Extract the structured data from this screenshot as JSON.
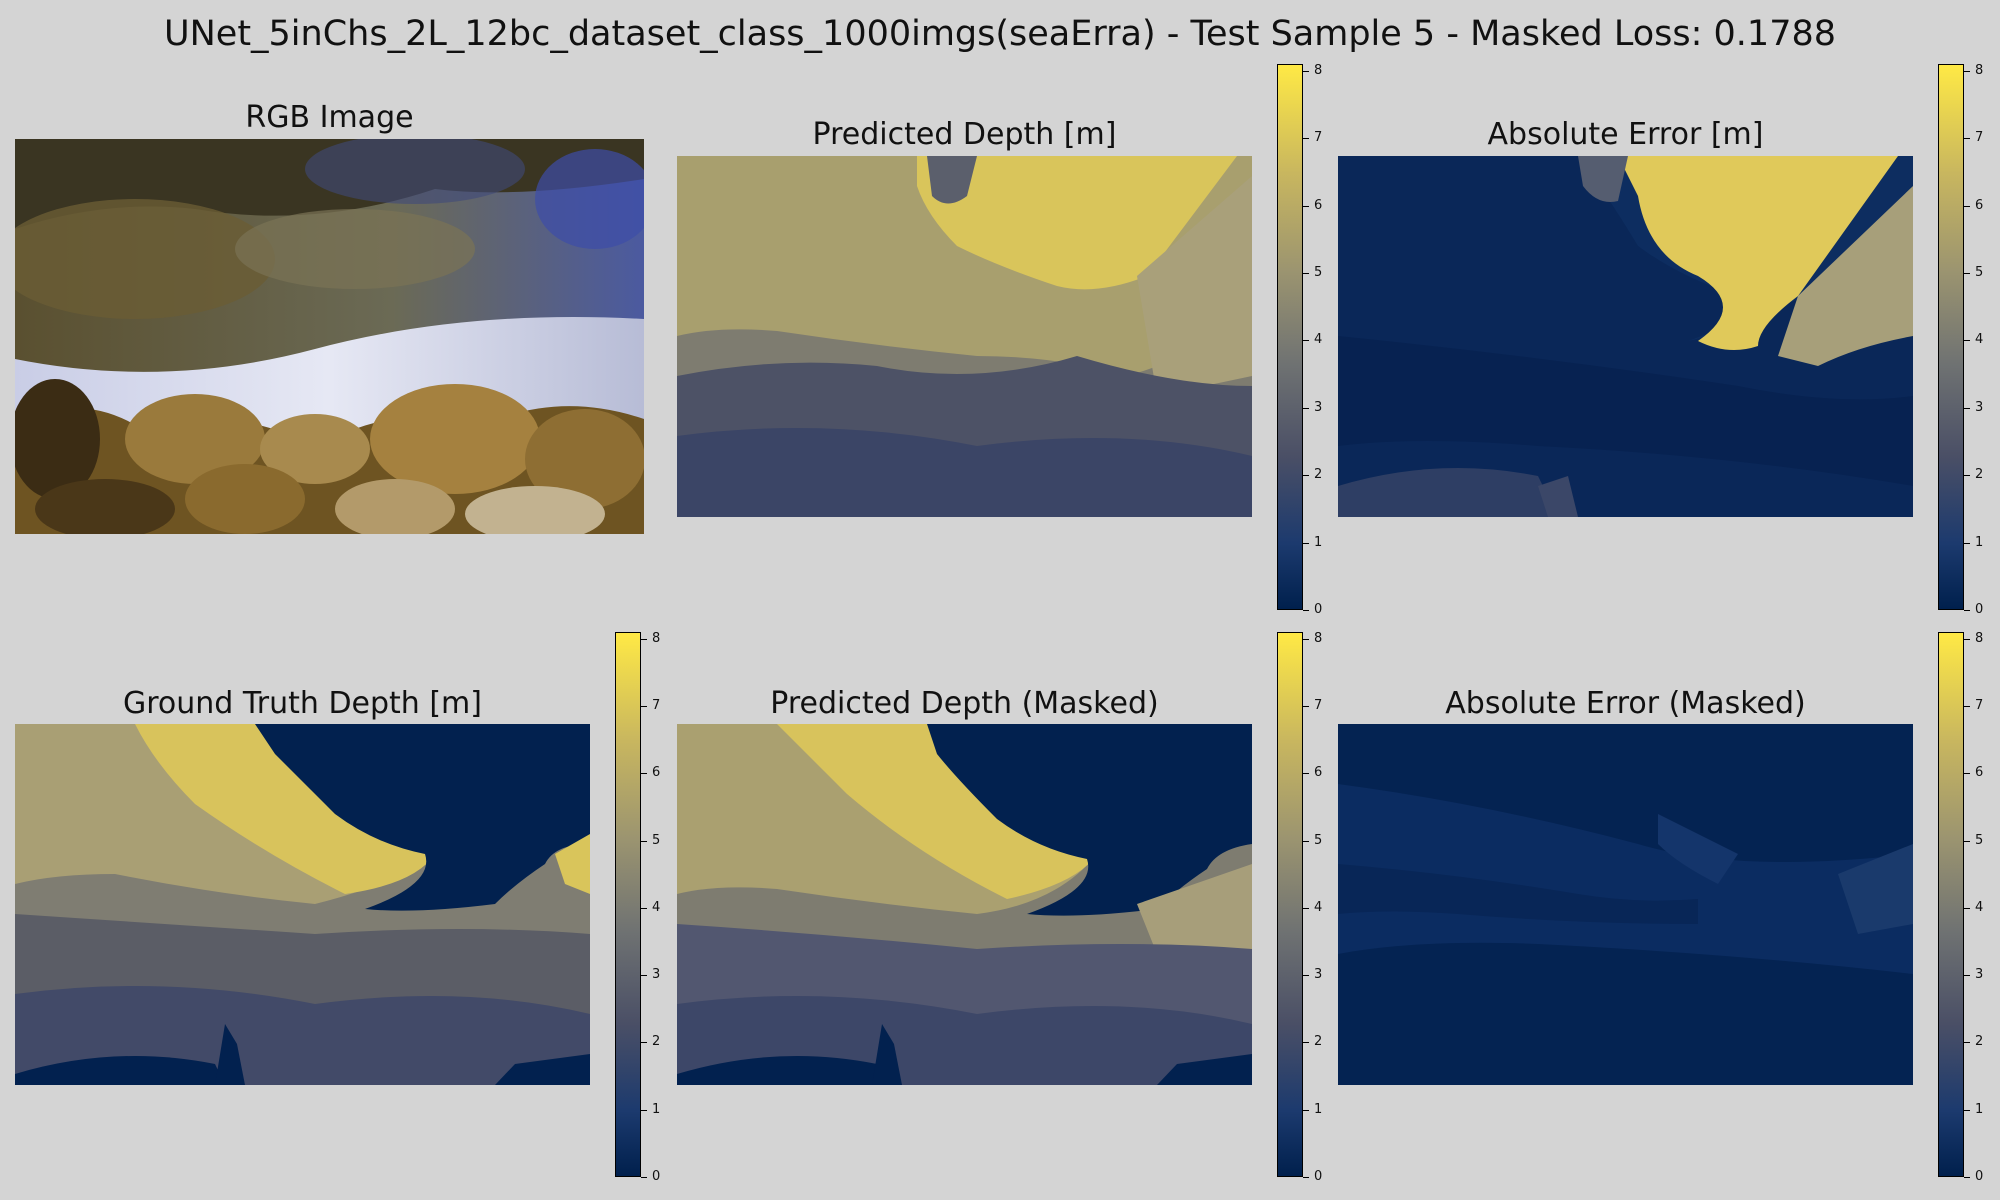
{
  "figure": {
    "title": "UNet_5inChs_2L_12bc_dataset_class_1000imgs(seaErra) - Test Sample 5 - Masked Loss: 0.1788"
  },
  "panels": {
    "rgb": {
      "title": "RGB Image"
    },
    "pred": {
      "title": "Predicted Depth [m]"
    },
    "err": {
      "title": "Absolute Error [m]"
    },
    "gt": {
      "title": "Ground Truth Depth [m]"
    },
    "pred_masked": {
      "title": "Predicted Depth (Masked)"
    },
    "err_masked": {
      "title": "Absolute Error (Masked)"
    }
  },
  "colorbar": {
    "colormap": "cividis",
    "ticks": [
      "0",
      "1",
      "2",
      "3",
      "4",
      "5",
      "6",
      "7",
      "8"
    ],
    "range": [
      0,
      8.1
    ]
  },
  "colors": {
    "background": "#d4d4d4",
    "deep_blue": "#00204d",
    "yellow": "#e3cd59",
    "mid_gray": "#7a7868"
  }
}
